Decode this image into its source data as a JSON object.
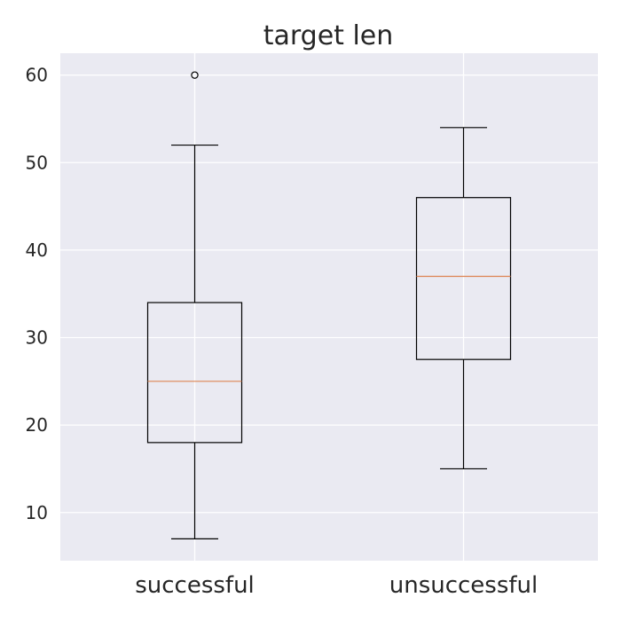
{
  "chart_data": {
    "type": "boxplot",
    "title": "target len",
    "xlabel": "",
    "ylabel": "",
    "categories": [
      "successful",
      "unsuccessful"
    ],
    "boxes": [
      {
        "category": "successful",
        "whisker_low": 7,
        "q1": 18,
        "median": 25,
        "q3": 34,
        "whisker_high": 52,
        "outliers": [
          60
        ]
      },
      {
        "category": "unsuccessful",
        "whisker_low": 15,
        "q1": 27.5,
        "median": 37,
        "q3": 46,
        "whisker_high": 54,
        "outliers": []
      }
    ],
    "ylim": [
      4.5,
      62.5
    ],
    "yticks": [
      10,
      20,
      30,
      40,
      50,
      60
    ],
    "grid": true,
    "colors": {
      "plot_background": "#eaeaf2",
      "grid": "#ffffff",
      "box": "#000000",
      "median": "#dd8452",
      "text": "#262626"
    }
  }
}
